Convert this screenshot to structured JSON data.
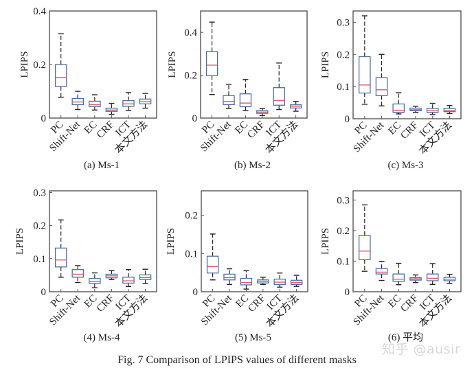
{
  "figure_caption": "Fig. 7    Comparison of LPIPS values of different masks",
  "watermark": "知乎 @ausir",
  "colors": {
    "box_edge": "#4f6fa8",
    "median": "#e05a6a",
    "whisker": "#222222",
    "axis": "#555555"
  },
  "chart_data": [
    {
      "type": "box",
      "title": "(a)  Ms-1",
      "xlabel": "",
      "ylabel": "LPIPS",
      "ylim": [
        0,
        0.4
      ],
      "yticks": [
        0,
        0.2,
        0.4
      ],
      "ytick_labels": [
        "0",
        "0.2",
        "0.4"
      ],
      "categories": [
        "PC",
        "Shift-Net",
        "EC",
        "CRF",
        "ICT",
        "本文方法"
      ],
      "boxes": [
        {
          "whislo": 0.078,
          "q1": 0.118,
          "med": 0.152,
          "q3": 0.2,
          "whishi": 0.315
        },
        {
          "whislo": 0.032,
          "q1": 0.05,
          "med": 0.06,
          "q3": 0.073,
          "whishi": 0.1
        },
        {
          "whislo": 0.03,
          "q1": 0.043,
          "med": 0.05,
          "q3": 0.063,
          "whishi": 0.087
        },
        {
          "whislo": 0.014,
          "q1": 0.025,
          "med": 0.03,
          "q3": 0.037,
          "whishi": 0.055
        },
        {
          "whislo": 0.028,
          "q1": 0.044,
          "med": 0.053,
          "q3": 0.065,
          "whishi": 0.095
        },
        {
          "whislo": 0.037,
          "q1": 0.053,
          "med": 0.061,
          "q3": 0.071,
          "whishi": 0.092
        }
      ]
    },
    {
      "type": "box",
      "title": "(b)  Ms-2",
      "xlabel": "",
      "ylabel": "LPIPS",
      "ylim": [
        0,
        0.5
      ],
      "yticks": [
        0,
        0.2,
        0.4
      ],
      "ytick_labels": [
        "0",
        "0.2",
        "0.4"
      ],
      "categories": [
        "PC",
        "Shift-Net",
        "EC",
        "CRF",
        "ICT",
        "本文方法"
      ],
      "boxes": [
        {
          "whislo": 0.11,
          "q1": 0.198,
          "med": 0.247,
          "q3": 0.31,
          "whishi": 0.448
        },
        {
          "whislo": 0.045,
          "q1": 0.063,
          "med": 0.078,
          "q3": 0.105,
          "whishi": 0.158
        },
        {
          "whislo": 0.035,
          "q1": 0.053,
          "med": 0.07,
          "q3": 0.113,
          "whishi": 0.18
        },
        {
          "whislo": 0.012,
          "q1": 0.022,
          "med": 0.028,
          "q3": 0.035,
          "whishi": 0.045
        },
        {
          "whislo": 0.04,
          "q1": 0.06,
          "med": 0.082,
          "q3": 0.142,
          "whishi": 0.257
        },
        {
          "whislo": 0.032,
          "q1": 0.047,
          "med": 0.055,
          "q3": 0.062,
          "whishi": 0.078
        }
      ]
    },
    {
      "type": "box",
      "title": "(c)  Ms-3",
      "xlabel": "",
      "ylabel": "LPIPS",
      "ylim": [
        0,
        0.335
      ],
      "yticks": [
        0,
        0.1,
        0.2,
        0.3
      ],
      "ytick_labels": [
        "0",
        "0.1",
        "0.2",
        "0.3"
      ],
      "categories": [
        "PC",
        "Shift-Net",
        "EC",
        "CRF",
        "ICT",
        "本文方法"
      ],
      "boxes": [
        {
          "whislo": 0.045,
          "q1": 0.08,
          "med": 0.105,
          "q3": 0.193,
          "whishi": 0.32
        },
        {
          "whislo": 0.04,
          "q1": 0.072,
          "med": 0.09,
          "q3": 0.128,
          "whishi": 0.2
        },
        {
          "whislo": 0.015,
          "q1": 0.02,
          "med": 0.025,
          "q3": 0.046,
          "whishi": 0.081
        },
        {
          "whislo": 0.02,
          "q1": 0.025,
          "med": 0.028,
          "q3": 0.033,
          "whishi": 0.039
        },
        {
          "whislo": 0.013,
          "q1": 0.02,
          "med": 0.025,
          "q3": 0.032,
          "whishi": 0.048
        },
        {
          "whislo": 0.016,
          "q1": 0.022,
          "med": 0.026,
          "q3": 0.032,
          "whishi": 0.041
        }
      ]
    },
    {
      "type": "box",
      "title": "(4)  Ms-4",
      "xlabel": "",
      "ylabel": "LPIPS",
      "ylim": [
        0,
        0.305
      ],
      "yticks": [
        0,
        0.1,
        0.2,
        0.3
      ],
      "ytick_labels": [
        "0",
        "0.1",
        "0.2",
        "0.3"
      ],
      "categories": [
        "PC",
        "Shift-Net",
        "EC",
        "CRF",
        "ICT",
        "本文方法"
      ],
      "boxes": [
        {
          "whislo": 0.044,
          "q1": 0.075,
          "med": 0.096,
          "q3": 0.132,
          "whishi": 0.217
        },
        {
          "whislo": 0.028,
          "q1": 0.044,
          "med": 0.053,
          "q3": 0.067,
          "whishi": 0.079
        },
        {
          "whislo": 0.012,
          "q1": 0.025,
          "med": 0.031,
          "q3": 0.04,
          "whishi": 0.057
        },
        {
          "whislo": 0.037,
          "q1": 0.042,
          "med": 0.048,
          "q3": 0.053,
          "whishi": 0.064
        },
        {
          "whislo": 0.016,
          "q1": 0.026,
          "med": 0.033,
          "q3": 0.044,
          "whishi": 0.067
        },
        {
          "whislo": 0.025,
          "q1": 0.037,
          "med": 0.043,
          "q3": 0.051,
          "whishi": 0.068
        }
      ]
    },
    {
      "type": "box",
      "title": "(5)  Ms-5",
      "xlabel": "",
      "ylabel": "LPIPS",
      "ylim": [
        0,
        0.264
      ],
      "yticks": [
        0,
        0.1,
        0.2
      ],
      "ytick_labels": [
        "0",
        "0.1",
        "0.2"
      ],
      "categories": [
        "PC",
        "Shift-Net",
        "EC",
        "CRF",
        "ICT",
        "本文方法"
      ],
      "boxes": [
        {
          "whislo": 0.031,
          "q1": 0.049,
          "med": 0.066,
          "q3": 0.093,
          "whishi": 0.151
        },
        {
          "whislo": 0.019,
          "q1": 0.031,
          "med": 0.037,
          "q3": 0.046,
          "whishi": 0.06
        },
        {
          "whislo": 0.007,
          "q1": 0.018,
          "med": 0.024,
          "q3": 0.035,
          "whishi": 0.055
        },
        {
          "whislo": 0.019,
          "q1": 0.023,
          "med": 0.027,
          "q3": 0.031,
          "whishi": 0.038
        },
        {
          "whislo": 0.012,
          "q1": 0.019,
          "med": 0.025,
          "q3": 0.033,
          "whishi": 0.049
        },
        {
          "whislo": 0.014,
          "q1": 0.019,
          "med": 0.024,
          "q3": 0.03,
          "whishi": 0.043
        }
      ]
    },
    {
      "type": "box",
      "title": "(6)  平均",
      "xlabel": "",
      "ylabel": "LPIPS",
      "ylim": [
        0,
        0.33
      ],
      "yticks": [
        0,
        0.1,
        0.2,
        0.3
      ],
      "ytick_labels": [
        "0",
        "0.1",
        "0.2",
        "0.3"
      ],
      "categories": [
        "PC",
        "Shift-Net",
        "EC",
        "CRF",
        "ICT",
        "本文方法"
      ],
      "boxes": [
        {
          "whislo": 0.067,
          "q1": 0.105,
          "med": 0.133,
          "q3": 0.184,
          "whishi": 0.284
        },
        {
          "whislo": 0.037,
          "q1": 0.058,
          "med": 0.064,
          "q3": 0.076,
          "whishi": 0.099
        },
        {
          "whislo": 0.023,
          "q1": 0.034,
          "med": 0.041,
          "q3": 0.058,
          "whishi": 0.093
        },
        {
          "whislo": 0.03,
          "q1": 0.038,
          "med": 0.042,
          "q3": 0.046,
          "whishi": 0.055
        },
        {
          "whislo": 0.024,
          "q1": 0.036,
          "med": 0.044,
          "q3": 0.058,
          "whishi": 0.092
        },
        {
          "whislo": 0.027,
          "q1": 0.036,
          "med": 0.041,
          "q3": 0.047,
          "whishi": 0.057
        }
      ]
    }
  ]
}
